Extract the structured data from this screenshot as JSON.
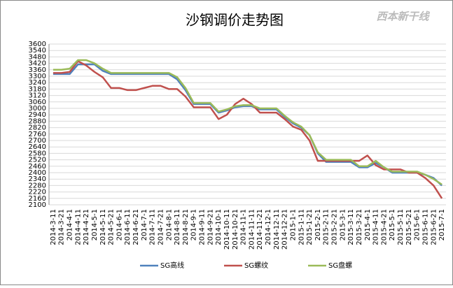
{
  "chart_data": {
    "type": "line",
    "title": "沙钢调价走势图",
    "watermark": "西本新干线",
    "categories": [
      "2014-3-11",
      "2014-3-21",
      "2014-4-1",
      "2014-4-11",
      "2014-4-21",
      "2014-5-1",
      "2014-5-11",
      "2014-5-21",
      "2014-6-1",
      "2014-6-11",
      "2014-6-21",
      "2014-7-1",
      "2014-7-11",
      "2014-7-21",
      "2014-8-1",
      "2014-8-11",
      "2014-8-21",
      "2014-9-1",
      "2014-9-11",
      "2014-9-21",
      "2014-10-1",
      "2014-10-11",
      "2014-10-21",
      "2014-11-1",
      "2014-11-11",
      "2014-11-21",
      "2014-12-1",
      "2014-12-11",
      "2014-12-21",
      "2015-1-1",
      "2015-1-11",
      "2015-1-21",
      "2015-2-1",
      "2015-2-11",
      "2015-2-21",
      "2015-3-1",
      "2015-3-11",
      "2015-3-21",
      "2015-4-1",
      "2015-4-11",
      "2015-4-21",
      "2015-5-1",
      "2015-5-11",
      "2015-5-21",
      "2015-6-1",
      "2015-6-11",
      "2015-6-21",
      "2015-7-1"
    ],
    "series": [
      {
        "name": "SG高线",
        "color": "#4f81bd",
        "values": [
          3320,
          3320,
          3320,
          3410,
          3410,
          3410,
          3350,
          3320,
          3320,
          3320,
          3320,
          3320,
          3320,
          3320,
          3320,
          3270,
          3170,
          3040,
          3040,
          3040,
          2960,
          2980,
          3010,
          3020,
          3020,
          2990,
          2990,
          2990,
          2920,
          2860,
          2820,
          2750,
          2580,
          2500,
          2500,
          2500,
          2500,
          2450,
          2450,
          2490,
          2450,
          2400,
          2400,
          2400,
          2400,
          2380,
          2350,
          2280
        ]
      },
      {
        "name": "SG螺纹",
        "color": "#c0504d",
        "values": [
          3330,
          3330,
          3340,
          3440,
          3400,
          3340,
          3290,
          3190,
          3190,
          3170,
          3170,
          3190,
          3210,
          3210,
          3180,
          3180,
          3110,
          3010,
          3010,
          3010,
          2900,
          2940,
          3040,
          3090,
          3040,
          2960,
          2960,
          2960,
          2900,
          2830,
          2800,
          2700,
          2510,
          2510,
          2510,
          2510,
          2510,
          2510,
          2560,
          2470,
          2430,
          2430,
          2430,
          2400,
          2400,
          2350,
          2280,
          2160
        ]
      },
      {
        "name": "SG盘螺",
        "color": "#9bbb59",
        "values": [
          3360,
          3360,
          3370,
          3450,
          3450,
          3420,
          3370,
          3330,
          3330,
          3330,
          3330,
          3330,
          3330,
          3330,
          3330,
          3290,
          3190,
          3050,
          3050,
          3050,
          2970,
          2990,
          3020,
          3030,
          3030,
          3000,
          3000,
          3000,
          2930,
          2870,
          2830,
          2750,
          2590,
          2520,
          2520,
          2520,
          2520,
          2460,
          2460,
          2510,
          2450,
          2410,
          2410,
          2410,
          2410,
          2380,
          2340,
          2290
        ]
      }
    ],
    "ylim": [
      2100,
      3600
    ],
    "yticks": [
      2100,
      2160,
      2220,
      2280,
      2340,
      2400,
      2460,
      2520,
      2580,
      2640,
      2700,
      2760,
      2820,
      2880,
      2940,
      3000,
      3060,
      3120,
      3180,
      3240,
      3300,
      3360,
      3420,
      3480,
      3540,
      3600
    ],
    "grid": true,
    "legend": "bottom"
  }
}
